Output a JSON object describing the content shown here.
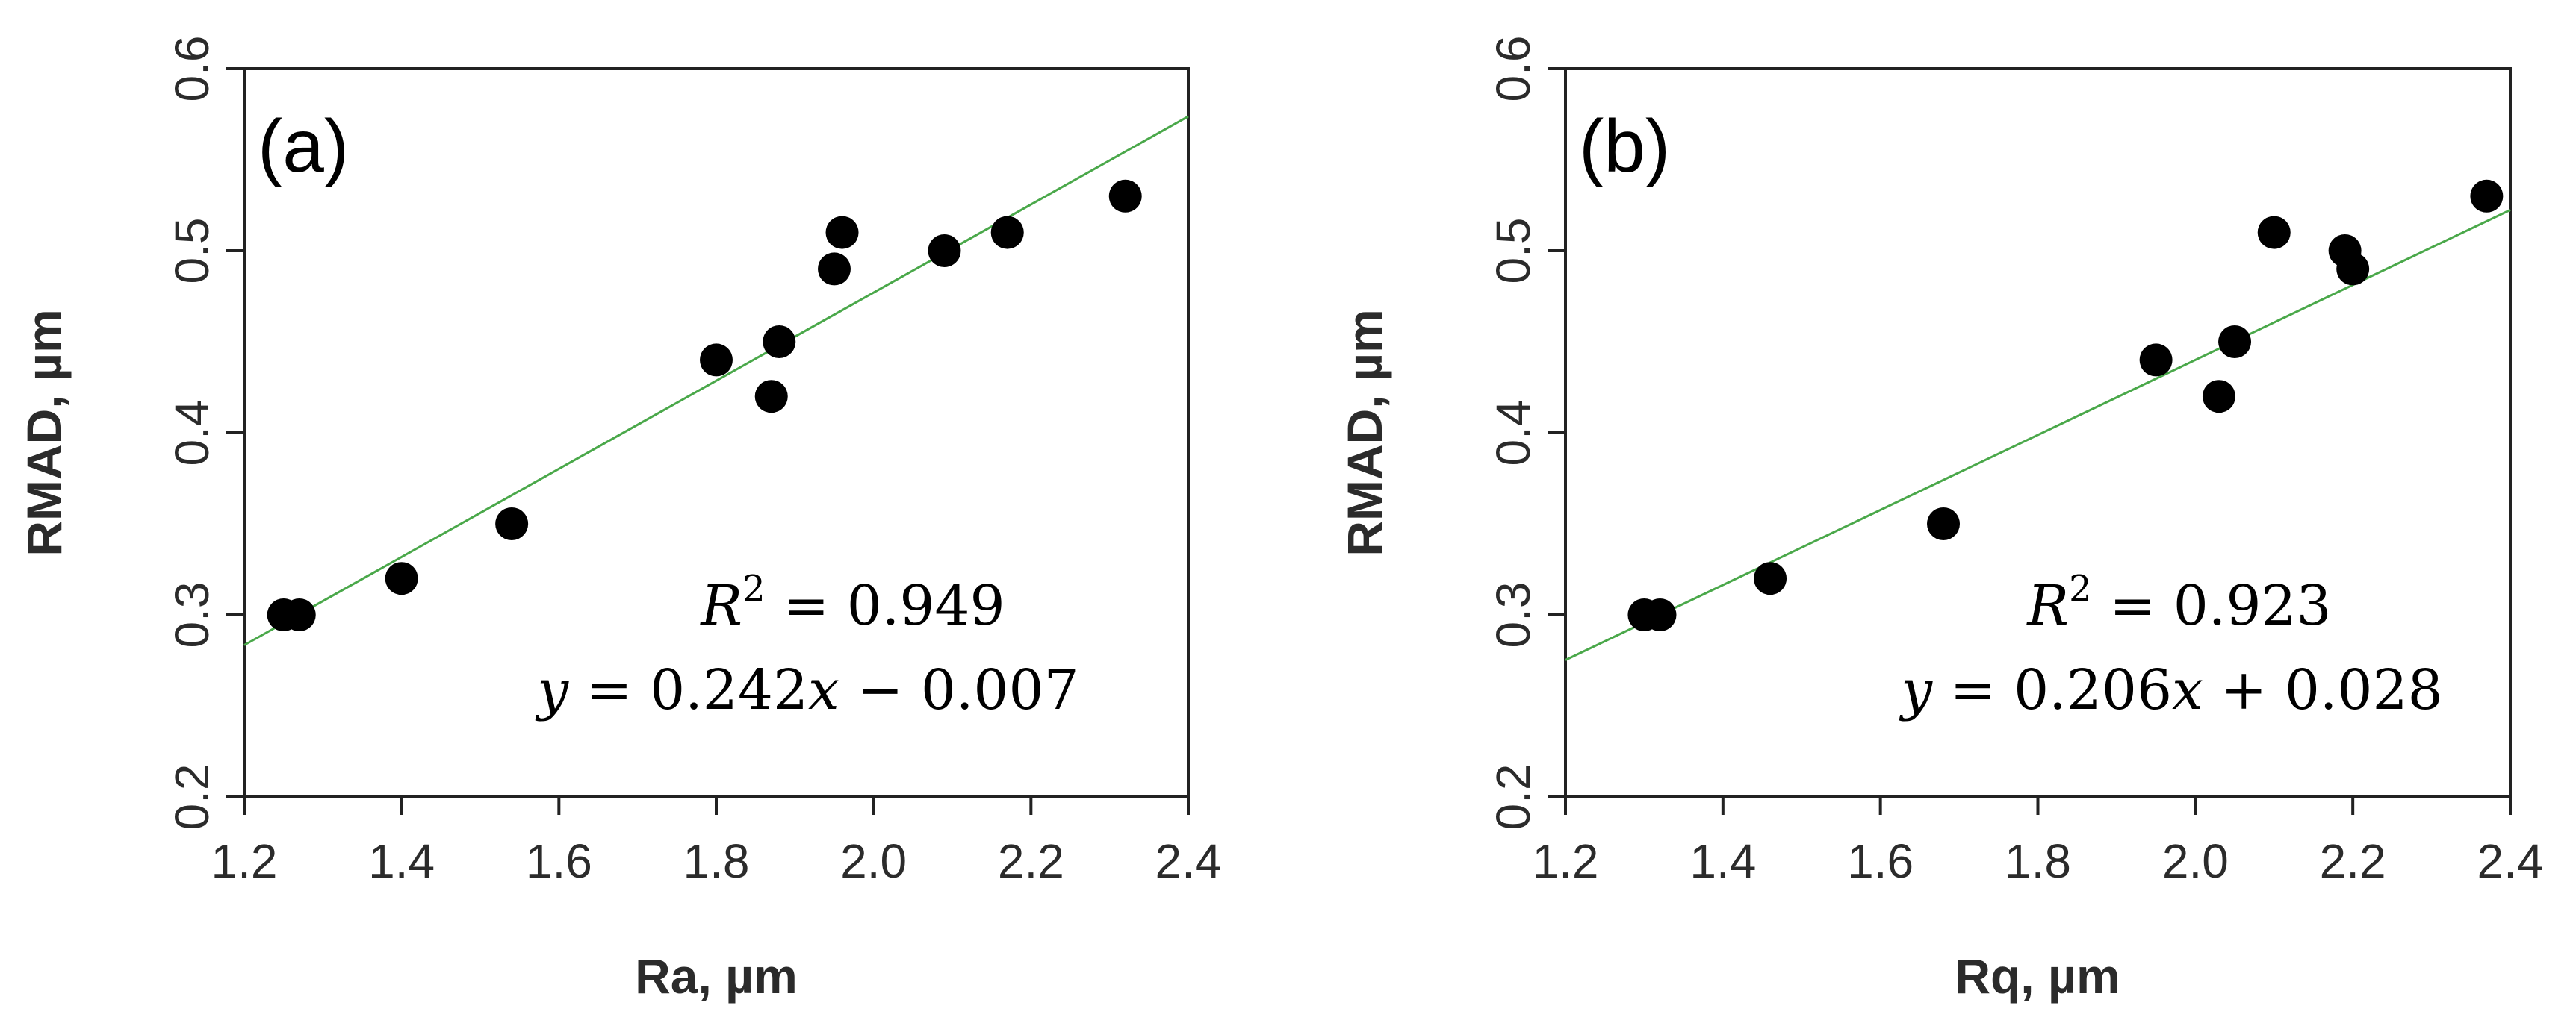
{
  "chart_data": [
    {
      "type": "scatter",
      "panel_label": "(a)",
      "xlabel": "Ra, µm",
      "ylabel": "RMAD, µm",
      "xlim": [
        1.2,
        2.4
      ],
      "ylim": [
        0.2,
        0.6
      ],
      "xticks": [
        "1.2",
        "1.4",
        "1.6",
        "1.8",
        "2.0",
        "2.2",
        "2.4"
      ],
      "yticks": [
        "0.2",
        "0.3",
        "0.4",
        "0.5",
        "0.6"
      ],
      "points": [
        {
          "x": 1.25,
          "y": 0.3
        },
        {
          "x": 1.27,
          "y": 0.3
        },
        {
          "x": 1.4,
          "y": 0.32
        },
        {
          "x": 1.54,
          "y": 0.35
        },
        {
          "x": 1.8,
          "y": 0.44
        },
        {
          "x": 1.87,
          "y": 0.42
        },
        {
          "x": 1.88,
          "y": 0.45
        },
        {
          "x": 1.95,
          "y": 0.49
        },
        {
          "x": 1.96,
          "y": 0.51
        },
        {
          "x": 2.09,
          "y": 0.5
        },
        {
          "x": 2.17,
          "y": 0.51
        },
        {
          "x": 2.32,
          "y": 0.53
        }
      ],
      "fit": {
        "slope": 0.242,
        "intercept": -0.007,
        "color": "#4aa84a"
      },
      "r2_lhs": "R",
      "r2_sup": "2",
      "r2_rhs": " = 0.949",
      "eq_y": "y",
      "eq_mid": " = 0.242",
      "eq_x": "x",
      "eq_tail": " − 0.007"
    },
    {
      "type": "scatter",
      "panel_label": "(b)",
      "xlabel": "Rq, µm",
      "ylabel": "RMAD, µm",
      "xlim": [
        1.2,
        2.4
      ],
      "ylim": [
        0.2,
        0.6
      ],
      "xticks": [
        "1.2",
        "1.4",
        "1.6",
        "1.8",
        "2.0",
        "2.2",
        "2.4"
      ],
      "yticks": [
        "0.2",
        "0.3",
        "0.4",
        "0.5",
        "0.6"
      ],
      "points": [
        {
          "x": 1.3,
          "y": 0.3
        },
        {
          "x": 1.32,
          "y": 0.3
        },
        {
          "x": 1.46,
          "y": 0.32
        },
        {
          "x": 1.68,
          "y": 0.35
        },
        {
          "x": 1.95,
          "y": 0.44
        },
        {
          "x": 2.03,
          "y": 0.42
        },
        {
          "x": 2.05,
          "y": 0.45
        },
        {
          "x": 2.1,
          "y": 0.51
        },
        {
          "x": 2.19,
          "y": 0.5
        },
        {
          "x": 2.2,
          "y": 0.49
        },
        {
          "x": 2.37,
          "y": 0.53
        }
      ],
      "fit": {
        "slope": 0.206,
        "intercept": 0.028,
        "color": "#4aa84a"
      },
      "r2_lhs": "R",
      "r2_sup": "2",
      "r2_rhs": " = 0.923",
      "eq_y": "y",
      "eq_mid": " = 0.206",
      "eq_x": "x",
      "eq_tail": " + 0.028"
    }
  ]
}
